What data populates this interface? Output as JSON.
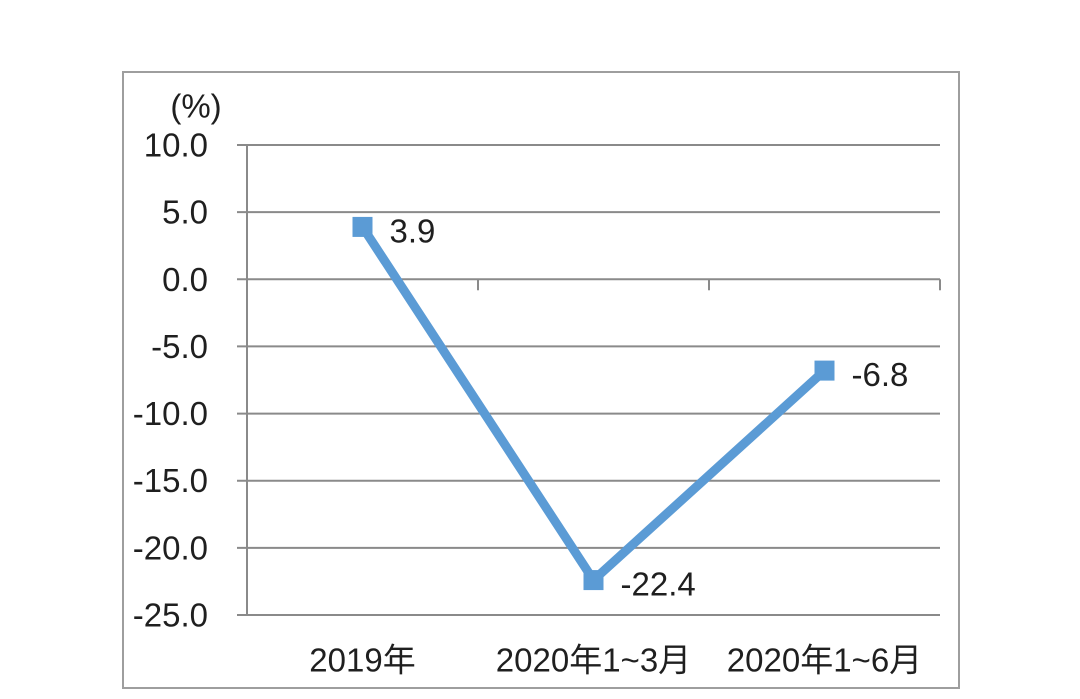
{
  "chart_data": {
    "type": "line",
    "title": "",
    "unit_label": "(%)",
    "categories": [
      "2019年",
      "2020年1~3月",
      "2020年1~6月"
    ],
    "series": [
      {
        "name": "series-1",
        "values": [
          3.9,
          -22.4,
          -6.8
        ]
      }
    ],
    "point_labels": [
      "3.9",
      "-22.4",
      "-6.8"
    ],
    "y_tick_labels": [
      "10.0",
      "5.0",
      "0.0",
      "-5.0",
      "-10.0",
      "-15.0",
      "-20.0",
      "-25.0"
    ],
    "y_tick_values": [
      10,
      5,
      0,
      -5,
      -10,
      -15,
      -20,
      -25
    ],
    "ylim": [
      -25,
      10
    ],
    "x_axis_at_value": 0,
    "grid": true,
    "legend": "none",
    "marker_shape": "square",
    "colors": {
      "line": "#5b9bd5",
      "marker": "#5b9bd5",
      "grid": "#8a8a8a",
      "axis": "#8a8a8a",
      "frame": "#9e9e9e",
      "text": "#1f1f1f"
    }
  }
}
